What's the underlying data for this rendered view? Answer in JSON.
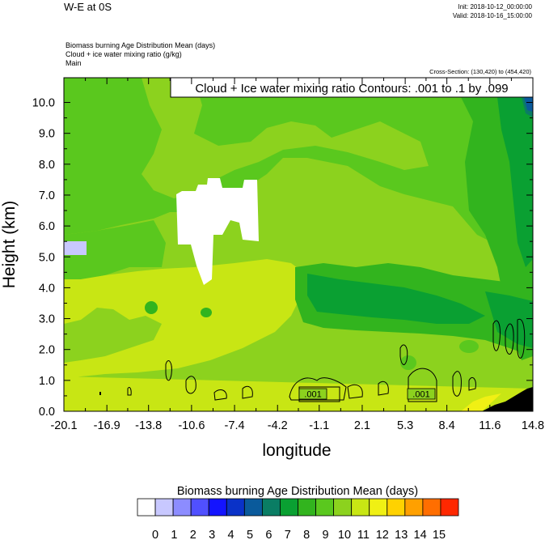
{
  "header": {
    "title": "W-E at 0S",
    "init": "Init: 2018-10-12_00:00:00",
    "valid": "Valid: 2018-10-16_15:00:00",
    "line1": "Biomass burning Age Distribution Mean   (days)",
    "line2": "Cloud + ice water mixing ratio   (g/kg)",
    "line3": "Main",
    "cross_section": "Cross-Section: (130,420) to (454,420)"
  },
  "chart_data": {
    "type": "heatmap",
    "title": "W-E at 0S",
    "xlabel": "longitude",
    "ylabel": "Height (km)",
    "contour_label": "Cloud + Ice water mixing ratio Contours: .001 to .1 by .099",
    "contour_value_labels": [
      ".001",
      ".001"
    ],
    "x_ticks": [
      "-20.1",
      "-16.9",
      "-13.8",
      "-10.6",
      "-7.4",
      "-4.2",
      "-1.1",
      "2.1",
      "5.3",
      "8.4",
      "11.6",
      "14.8"
    ],
    "y_ticks": [
      "0.0",
      "1.0",
      "2.0",
      "3.0",
      "4.0",
      "5.0",
      "6.0",
      "7.0",
      "8.0",
      "9.0",
      "10.0"
    ],
    "xlim": [
      -20.1,
      14.8
    ],
    "ylim": [
      0,
      10.8
    ],
    "colorbar": {
      "title": "Biomass burning Age Distribution Mean  (days)",
      "labels": [
        "0",
        "1",
        "2",
        "3",
        "4",
        "5",
        "6",
        "7",
        "8",
        "9",
        "10",
        "11",
        "12",
        "13",
        "14",
        "15"
      ],
      "colors": [
        "#ffffff",
        "#c8c8ff",
        "#8c8cff",
        "#5050ff",
        "#1414ff",
        "#0a32c8",
        "#0a5a9b",
        "#0a7d64",
        "#0aa032",
        "#32b41e",
        "#5ac81e",
        "#8cd21e",
        "#c8e614",
        "#f0f014",
        "#ffd200",
        "#ffa000",
        "#ff6e00",
        "#ff2800"
      ]
    }
  }
}
